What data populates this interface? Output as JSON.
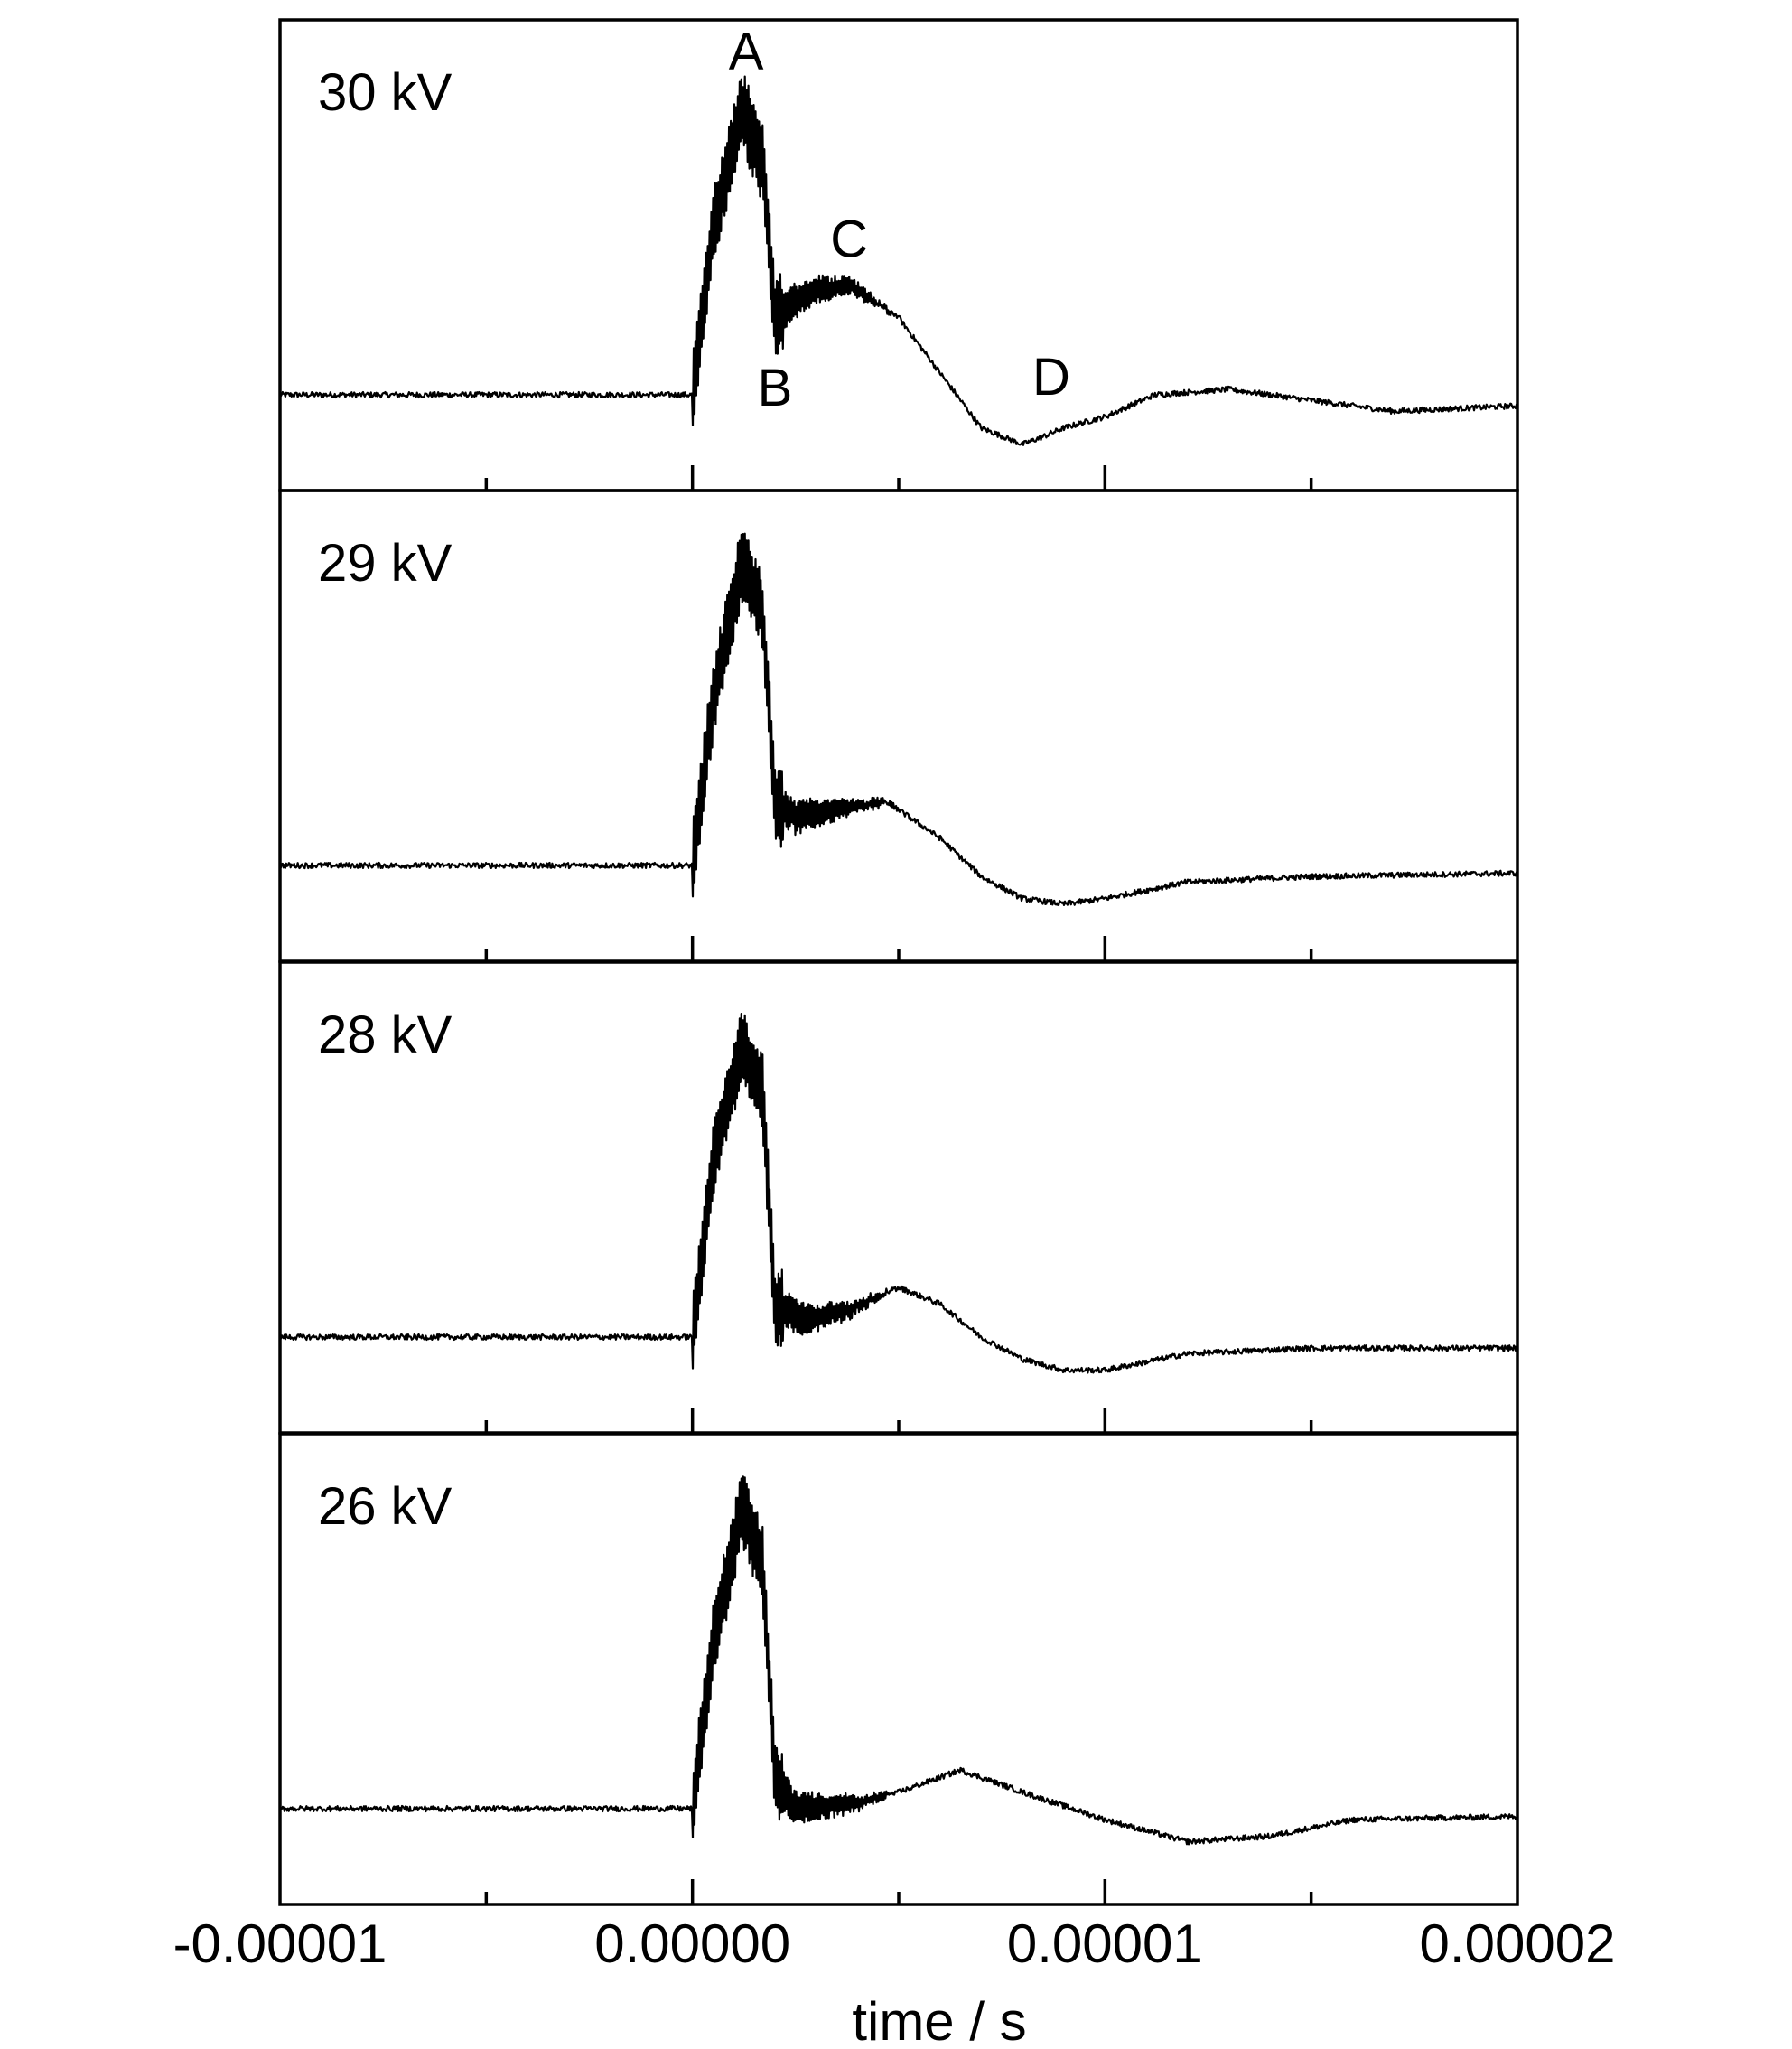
{
  "chart_data": {
    "type": "line",
    "title": "",
    "xlabel": "time / s",
    "ylabel": "",
    "xlim": [
      -1e-05,
      2e-05
    ],
    "ylim": [
      -1.0,
      3.2
    ],
    "xticks": [
      -1e-05,
      -5e-06,
      0.0,
      5e-06,
      1e-05,
      1.5e-05,
      2e-05
    ],
    "xtick_labels": [
      "-0.00001",
      "0.00000",
      "0.00001",
      "0.00002"
    ],
    "xtick_label_values": [
      -1e-05,
      0.0,
      1e-05,
      2e-05
    ],
    "grid": false,
    "legend": "none",
    "note_y_axis": "no y-axis ticks or labels shown (arbitrary units)",
    "panels": [
      {
        "label": "30 kV",
        "series": [
          {
            "x": [
              -1e-05,
              -1e-06,
              0.0,
              5e-07,
              1.2e-06,
              1.7e-06,
              2e-06,
              2.5e-06,
              3e-06,
              3.8e-06,
              5e-06,
              6e-06,
              7e-06,
              8e-06,
              8.5e-06,
              9e-06,
              1e-05,
              1.12e-05,
              1.3e-05,
              1.5e-05,
              1.7e-05,
              2e-05
            ],
            "y": [
              0.0,
              0.0,
              0.0,
              1.5,
              2.6,
              2.1,
              0.7,
              0.85,
              0.95,
              1.0,
              0.7,
              0.2,
              -0.3,
              -0.45,
              -0.38,
              -0.3,
              -0.2,
              0.0,
              0.05,
              -0.05,
              -0.15,
              -0.1
            ]
          }
        ],
        "annotations": [
          {
            "text": "A",
            "x": 1.3e-06,
            "y": 2.95
          },
          {
            "text": "B",
            "x": 2e-06,
            "y": -0.1
          },
          {
            "text": "C",
            "x": 3.8e-06,
            "y": 1.25
          },
          {
            "text": "D",
            "x": 8.7e-06,
            "y": 0.0
          }
        ]
      },
      {
        "label": "29 kV",
        "series": [
          {
            "x": [
              -1e-05,
              -1e-06,
              0.0,
              5e-07,
              1.2e-06,
              1.7e-06,
              2e-06,
              2.5e-06,
              3.5e-06,
              4.7e-06,
              6e-06,
              7e-06,
              8e-06,
              9e-06,
              1e-05,
              1.2e-05,
              1.5e-05,
              2e-05
            ],
            "y": [
              0.0,
              0.0,
              0.0,
              1.5,
              2.75,
              2.3,
              0.55,
              0.45,
              0.5,
              0.58,
              0.25,
              -0.1,
              -0.3,
              -0.35,
              -0.3,
              -0.15,
              -0.1,
              -0.07
            ]
          }
        ],
        "annotations": []
      },
      {
        "label": "28 kV",
        "series": [
          {
            "x": [
              -1e-05,
              -1e-06,
              0.0,
              5e-07,
              1.2e-06,
              1.7e-06,
              2e-06,
              2.7e-06,
              3.8e-06,
              5e-06,
              6e-06,
              7e-06,
              8e-06,
              9e-06,
              1e-05,
              1.2e-05,
              1.5e-05,
              2e-05
            ],
            "y": [
              0.0,
              0.0,
              0.0,
              1.6,
              2.65,
              2.2,
              0.3,
              0.15,
              0.25,
              0.45,
              0.3,
              0.0,
              -0.2,
              -0.3,
              -0.3,
              -0.15,
              -0.1,
              -0.1
            ]
          }
        ],
        "annotations": []
      },
      {
        "label": "26 kV",
        "series": [
          {
            "x": [
              -1e-05,
              -1e-06,
              0.0,
              5e-07,
              1.2e-06,
              1.7e-06,
              2e-06,
              2.5e-06,
              4e-06,
              5e-06,
              6.5e-06,
              8e-06,
              1e-05,
              1.2e-05,
              1.4e-05,
              1.6e-05,
              2e-05
            ],
            "y": [
              0.0,
              0.0,
              0.0,
              1.5,
              2.75,
              2.2,
              0.3,
              0.0,
              0.05,
              0.15,
              0.35,
              0.15,
              -0.1,
              -0.3,
              -0.25,
              -0.1,
              -0.07
            ]
          }
        ],
        "annotations": []
      }
    ]
  }
}
